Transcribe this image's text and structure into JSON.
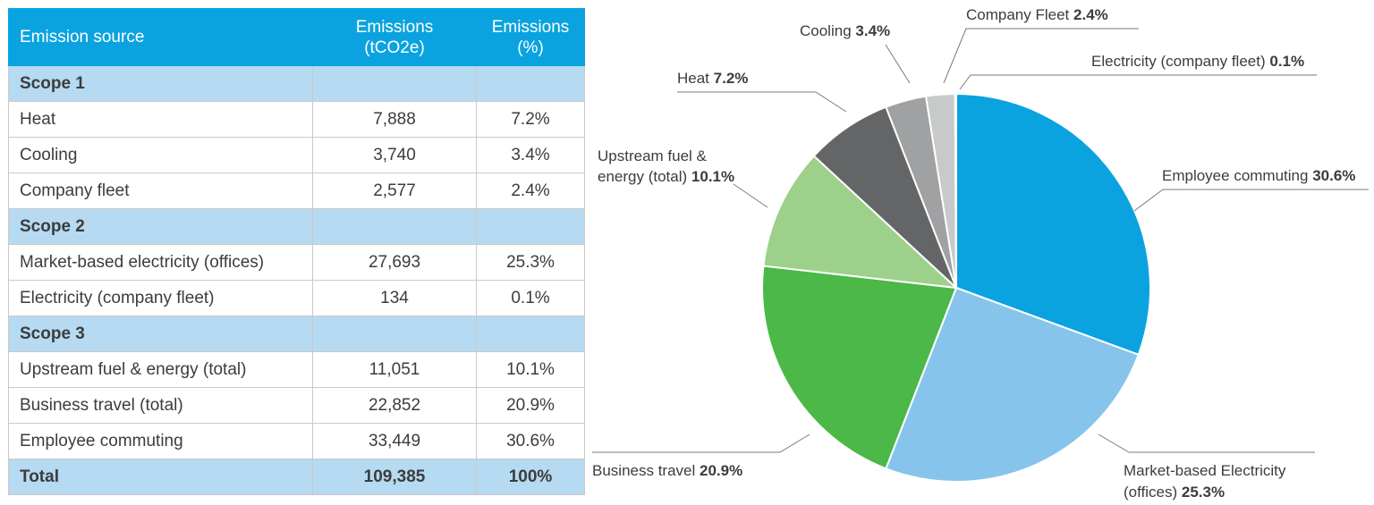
{
  "table": {
    "headers": {
      "source": "Emission source",
      "emissions_line1": "Emissions",
      "emissions_line2": "(tCO2e)",
      "percent_line1": "Emissions",
      "percent_line2": "(%)"
    },
    "rows": [
      {
        "type": "scope",
        "label": "Scope 1"
      },
      {
        "type": "item",
        "label": "Heat",
        "emissions": "7,888",
        "percent": "7.2%"
      },
      {
        "type": "item",
        "label": "Cooling",
        "emissions": "3,740",
        "percent": "3.4%"
      },
      {
        "type": "item",
        "label": "Company fleet",
        "emissions": "2,577",
        "percent": "2.4%"
      },
      {
        "type": "scope",
        "label": "Scope 2"
      },
      {
        "type": "item",
        "label": "Market-based electricity (offices)",
        "emissions": "27,693",
        "percent": "25.3%"
      },
      {
        "type": "item",
        "label": "Electricity (company fleet)",
        "emissions": "134",
        "percent": "0.1%"
      },
      {
        "type": "scope",
        "label": "Scope 3"
      },
      {
        "type": "item",
        "label": "Upstream fuel & energy (total)",
        "emissions": "11,051",
        "percent": "10.1%"
      },
      {
        "type": "item",
        "label": "Business travel (total)",
        "emissions": "22,852",
        "percent": "20.9%"
      },
      {
        "type": "item",
        "label": "Employee commuting",
        "emissions": "33,449",
        "percent": "30.6%"
      },
      {
        "type": "total",
        "label": "Total",
        "emissions": "109,385",
        "percent": "100%"
      }
    ]
  },
  "chart_data": {
    "type": "pie",
    "start_angle_deg": 0,
    "direction": "clockwise",
    "slices": [
      {
        "label_lines": [
          "Employee commuting"
        ],
        "pct_text": "30.6%",
        "value": 30.6,
        "color": "#0aa3e0"
      },
      {
        "label_lines": [
          "Market-based Electricity",
          "(offices)"
        ],
        "pct_text": "25.3%",
        "value": 25.3,
        "color": "#86c4ec"
      },
      {
        "label_lines": [
          "Business travel"
        ],
        "pct_text": "20.9%",
        "value": 20.9,
        "color": "#4cb848"
      },
      {
        "label_lines": [
          "Upstream fuel &",
          "energy (total)"
        ],
        "pct_text": "10.1%",
        "value": 10.1,
        "color": "#9dd18b"
      },
      {
        "label_lines": [
          "Heat"
        ],
        "pct_text": "7.2%",
        "value": 7.2,
        "color": "#646567"
      },
      {
        "label_lines": [
          "Cooling"
        ],
        "pct_text": "3.4%",
        "value": 3.4,
        "color": "#a0a1a3"
      },
      {
        "label_lines": [
          "Company Fleet"
        ],
        "pct_text": "2.4%",
        "value": 2.4,
        "color": "#c8c9ca"
      },
      {
        "label_lines": [
          "Electricity (company fleet)"
        ],
        "pct_text": "0.1%",
        "value": 0.1,
        "color": "#e4e4e4"
      }
    ]
  }
}
